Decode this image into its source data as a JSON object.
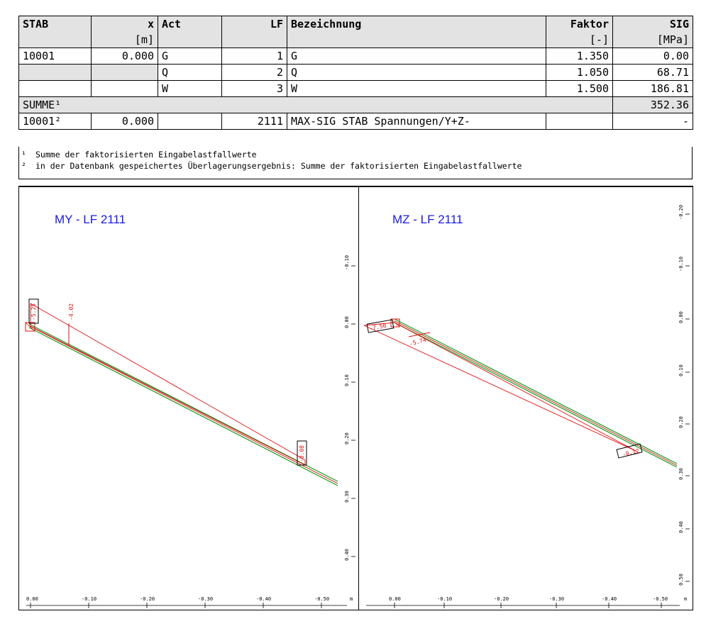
{
  "table": {
    "headers": [
      "STAB",
      "x",
      "Act",
      "LF",
      "Bezeichnung",
      "Faktor",
      "SIG"
    ],
    "units": [
      "",
      "[m]",
      "",
      "",
      "",
      "[-]",
      "[MPa]"
    ],
    "rows": [
      [
        "10001",
        "0.000",
        "G",
        "1",
        "G",
        "1.350",
        "0.00"
      ],
      [
        "",
        "",
        "Q",
        "2",
        "Q",
        "1.050",
        "68.71"
      ],
      [
        "",
        "",
        "W",
        "3",
        "W",
        "1.500",
        "186.81"
      ]
    ],
    "summe_label": "SUMME¹",
    "summe_value": "352.36",
    "result_row": [
      "10001²",
      "0.000",
      "",
      "2111",
      "MAX-SIG STAB Spannungen/Y+Z-",
      "",
      "-"
    ]
  },
  "notes": [
    {
      "mark": "¹",
      "text": "Summe der faktorisierten Eingabelastfallwerte"
    },
    {
      "mark": "²",
      "text": "in der Datenbank gespeichertes Überlagerungsergebnis: Summe der faktorisierten Eingabelastfallwerte"
    }
  ],
  "diagrams": {
    "left": {
      "title": "MY - LF 2111",
      "x_ticks": [
        "0.00",
        "-0.10",
        "-0.20",
        "-0.30",
        "-0.40",
        "-0.50"
      ],
      "y_ticks": [
        "-0.10",
        "0.00",
        "0.10",
        "0.20",
        "0.30",
        "0.40"
      ],
      "unit": "m",
      "labels": [
        "-5.25",
        "-4.02",
        "-0.08"
      ]
    },
    "right": {
      "title": "MZ - LF 2111",
      "x_ticks": [
        "0.00",
        "-0.10",
        "-0.20",
        "-0.30",
        "-0.40",
        "-0.50"
      ],
      "y_ticks": [
        "-0.20",
        "-0.10",
        "0.00",
        "0.10",
        "0.20",
        "0.30",
        "0.40",
        "0.50"
      ],
      "unit": "m",
      "labels": [
        "-7.50",
        "-5.74",
        "-0.12"
      ]
    },
    "colors": {
      "member": "#1a9a1a",
      "result": "#e01010",
      "title": "#1a1ae6"
    }
  }
}
